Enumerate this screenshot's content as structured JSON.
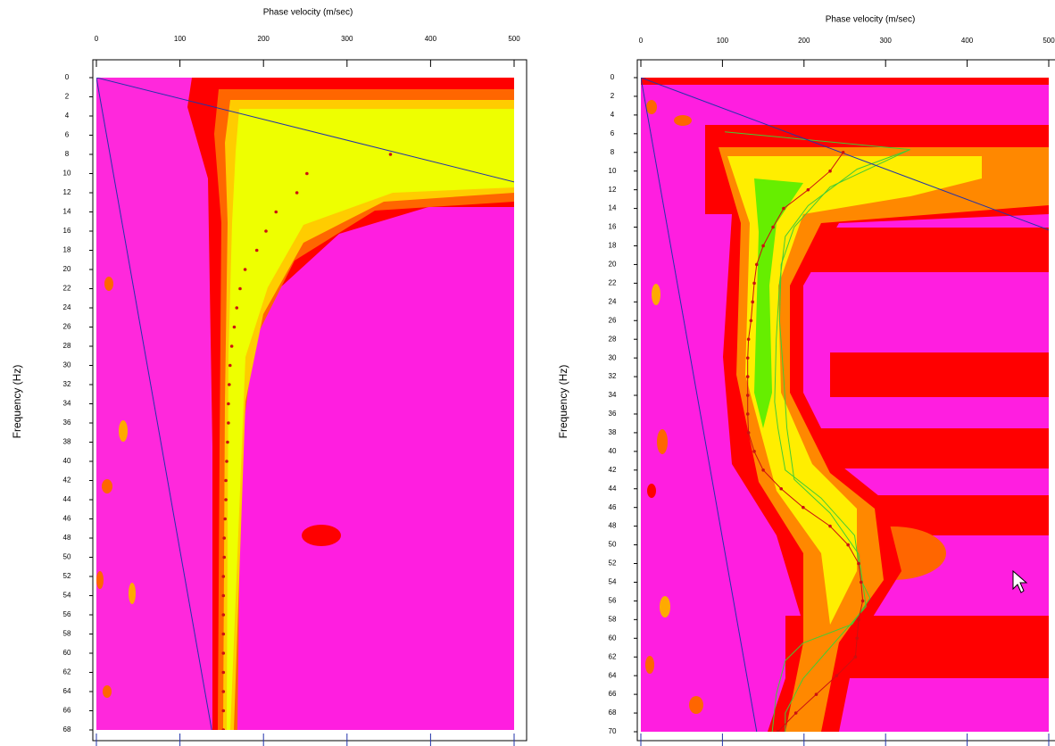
{
  "chart_data": [
    {
      "type": "scatter",
      "title": "Phase velocity (m/sec)",
      "y_label": "Frequency (Hz)",
      "xlim": [
        0,
        500
      ],
      "xticks": [
        0,
        100,
        200,
        300,
        400,
        500
      ],
      "ylim": [
        0,
        68
      ],
      "yticks": [
        0,
        2,
        4,
        6,
        8,
        10,
        12,
        14,
        16,
        18,
        20,
        22,
        24,
        26,
        28,
        30,
        32,
        34,
        36,
        38,
        40,
        42,
        44,
        46,
        48,
        50,
        52,
        54,
        56,
        58,
        60,
        62,
        64,
        66,
        68
      ],
      "y_inverted": true,
      "x_axis_position": "top",
      "series": [
        {
          "mode": "markers",
          "color": "#cc1111",
          "x": [
            352,
            252,
            240,
            215,
            203,
            192,
            178,
            172,
            168,
            165,
            162,
            160,
            159,
            158,
            158,
            157,
            156,
            155,
            155,
            154,
            153,
            153,
            152,
            152,
            152,
            152,
            152,
            152,
            152,
            152,
            152
          ],
          "values": [
            8,
            10,
            12,
            14,
            16,
            18,
            20,
            22,
            24,
            26,
            28,
            30,
            32,
            34,
            36,
            38,
            40,
            42,
            44,
            46,
            48,
            50,
            52,
            54,
            56,
            58,
            60,
            62,
            64,
            66,
            68
          ]
        },
        {
          "mode": "lines",
          "color": "#2233aa",
          "x": [
            0,
            515
          ],
          "values": [
            0,
            11.2
          ]
        },
        {
          "mode": "lines",
          "color": "#2233aa",
          "x": [
            0,
            138
          ],
          "values": [
            0,
            68
          ]
        }
      ]
    },
    {
      "type": "scatter",
      "title": "Phase velocity (m/sec)",
      "y_label": "Frequency (Hz)",
      "xlim": [
        0,
        500
      ],
      "xticks": [
        0,
        100,
        200,
        300,
        400,
        500
      ],
      "ylim": [
        0,
        70
      ],
      "yticks": [
        0,
        2,
        4,
        6,
        8,
        10,
        12,
        14,
        16,
        18,
        20,
        22,
        24,
        26,
        28,
        30,
        32,
        34,
        36,
        38,
        40,
        42,
        44,
        46,
        48,
        50,
        52,
        54,
        56,
        58,
        60,
        62,
        64,
        66,
        68,
        70
      ],
      "y_inverted": true,
      "x_axis_position": "top",
      "series": [
        {
          "mode": "lines",
          "color": "#44cc33",
          "x": [
            103,
            330,
            265,
            205,
            177,
            170,
            166,
            164,
            168,
            177,
            221,
            262,
            270,
            281,
            259,
            199,
            177,
            166,
            161
          ],
          "values": [
            5.8,
            7.7,
            9.8,
            13.7,
            17,
            22,
            28,
            34.7,
            37.5,
            42,
            45,
            49,
            53.8,
            55.7,
            58.5,
            60.5,
            62.4,
            66,
            70
          ]
        },
        {
          "mode": "lines",
          "color": "#44cc33",
          "x": [
            330,
            232,
            188,
            172,
            170,
            175,
            179,
            188,
            232,
            267,
            276,
            237,
            199,
            177,
            177
          ],
          "values": [
            7.7,
            11.7,
            16,
            20,
            26,
            32,
            37.5,
            43,
            46.6,
            51,
            56.6,
            60.5,
            64.3,
            68,
            70
          ]
        },
        {
          "mode": "lines",
          "color": "#2233aa",
          "x": [
            0,
            500
          ],
          "values": [
            0,
            16.3
          ]
        },
        {
          "mode": "lines",
          "color": "#2233aa",
          "x": [
            0,
            142
          ],
          "values": [
            0,
            70
          ]
        },
        {
          "mode": "markers-line",
          "color": "#cc1111",
          "x": [
            248,
            232,
            205,
            175,
            162,
            150,
            142,
            139,
            137,
            135,
            132,
            131,
            131,
            131,
            131,
            132,
            139,
            150,
            172,
            199,
            232,
            254,
            267,
            270,
            272,
            267,
            265,
            263,
            240,
            215,
            190,
            168
          ],
          "values": [
            8,
            10,
            12,
            14,
            16,
            18,
            20,
            22,
            24,
            26,
            28,
            30,
            32,
            34,
            36,
            38,
            40,
            42,
            44,
            46,
            48,
            50,
            52,
            54,
            56,
            58,
            60,
            62,
            64,
            66,
            68,
            70
          ]
        }
      ]
    }
  ]
}
